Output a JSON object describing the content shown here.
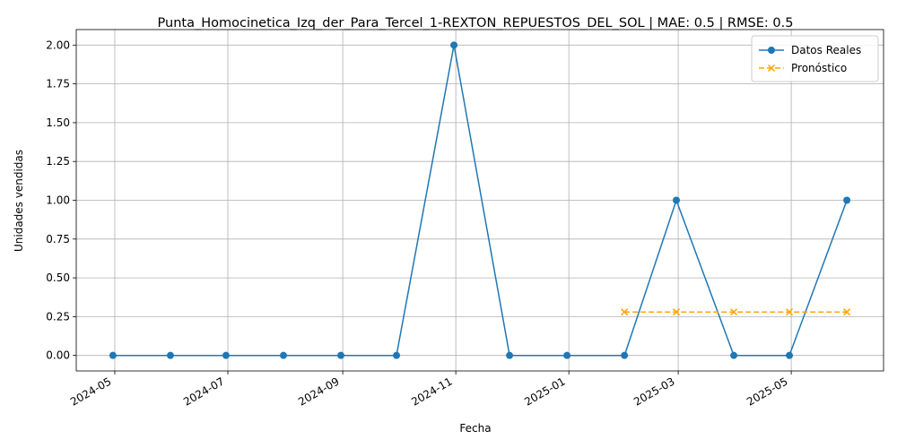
{
  "chart_data": {
    "type": "line",
    "title": "Punta_Homocinetica_Izq_der_Para_Tercel_1-REXTON_REPUESTOS_DEL_SOL | MAE: 0.5 | RMSE: 0.5",
    "xlabel": "Fecha",
    "ylabel": "Unidades vendidas",
    "ylim": [
      -0.1,
      2.1
    ],
    "grid": true,
    "legend_position": "top-right",
    "x_ticks": [
      "2024-05",
      "2024-07",
      "2024-09",
      "2024-11",
      "2025-01",
      "2025-03",
      "2025-05"
    ],
    "y_ticks": [
      "0.00",
      "0.25",
      "0.50",
      "0.75",
      "1.00",
      "1.25",
      "1.50",
      "1.75",
      "2.00"
    ],
    "series": [
      {
        "name": "Datos Reales",
        "color": "#1f77b4",
        "style": "solid",
        "marker": "circle",
        "x": [
          "2024-04-30",
          "2024-05-31",
          "2024-06-30",
          "2024-07-31",
          "2024-08-31",
          "2024-09-30",
          "2024-10-31",
          "2024-11-30",
          "2024-12-31",
          "2025-01-31",
          "2025-02-28",
          "2025-03-31",
          "2025-04-30",
          "2025-05-31"
        ],
        "values": [
          0,
          0,
          0,
          0,
          0,
          0,
          2,
          0,
          0,
          0,
          1,
          0,
          0,
          1
        ]
      },
      {
        "name": "Pronóstico",
        "color": "#ffa500",
        "style": "dashed",
        "marker": "x",
        "x": [
          "2025-01-31",
          "2025-02-28",
          "2025-03-31",
          "2025-04-30",
          "2025-05-31"
        ],
        "values": [
          0.28,
          0.28,
          0.28,
          0.28,
          0.28
        ]
      }
    ]
  }
}
